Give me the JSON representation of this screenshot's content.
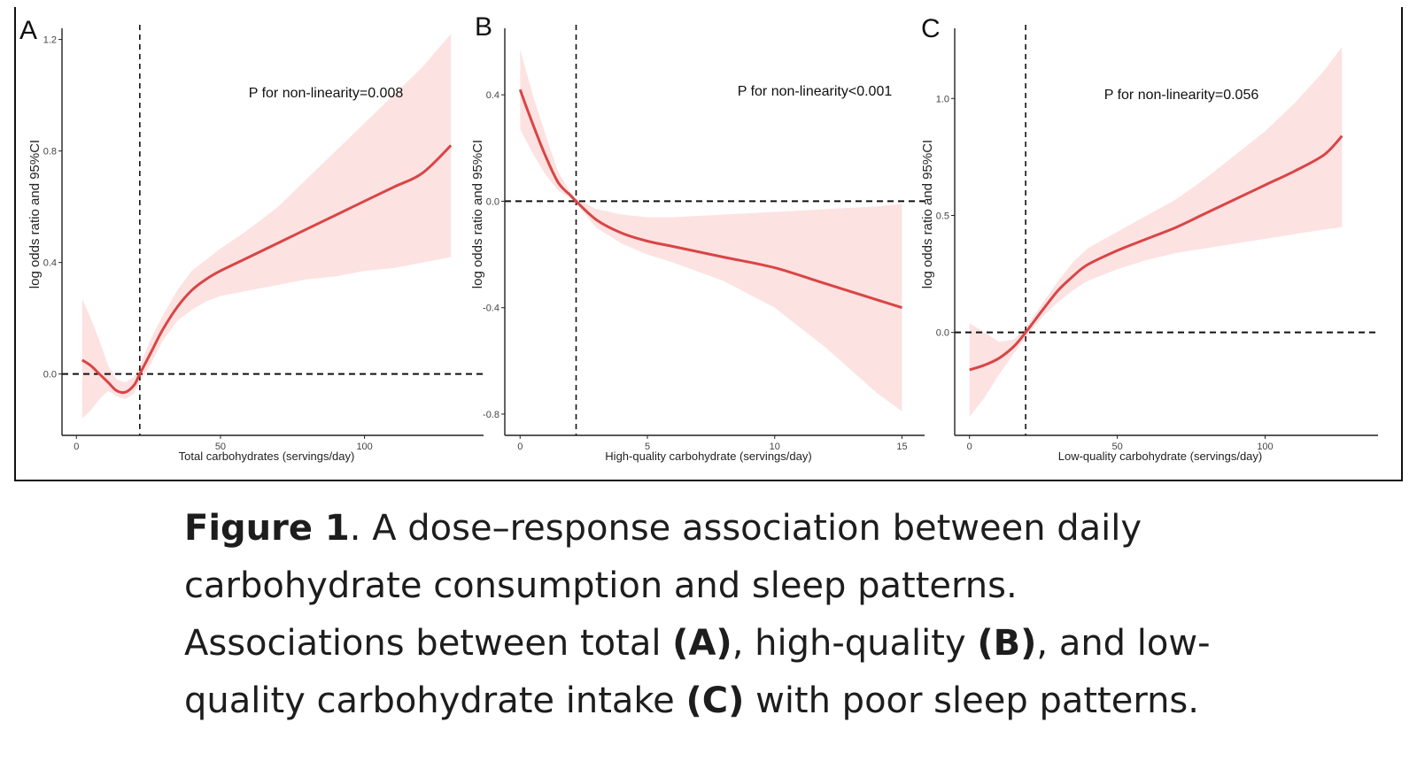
{
  "chart_data": [
    {
      "type": "line",
      "panel": "A",
      "xlabel": "Total carbohydrates (servings/day)",
      "ylabel": "log odds ratio and 95%CI",
      "annotation": "P for non-linearity=0.008",
      "xlim": [
        -5,
        137
      ],
      "ylim": [
        -0.22,
        1.24
      ],
      "xticks": [
        0,
        50,
        100
      ],
      "xtick_labels": [
        "0",
        "50",
        "100"
      ],
      "yticks": [
        0.0,
        0.4,
        0.8,
        1.2
      ],
      "ytick_labels": [
        "0.0",
        "0.4",
        "0.8",
        "1.2"
      ],
      "ref_x": 22,
      "ref_y": 0,
      "series": [
        {
          "name": "log odds ratio",
          "color": "#d94545",
          "x": [
            2,
            5,
            8,
            11,
            14,
            17,
            20,
            22,
            26,
            30,
            35,
            40,
            45,
            50,
            60,
            70,
            80,
            90,
            100,
            110,
            120,
            130
          ],
          "y": [
            0.05,
            0.03,
            0.0,
            -0.03,
            -0.06,
            -0.065,
            -0.04,
            0.0,
            0.08,
            0.16,
            0.24,
            0.3,
            0.34,
            0.37,
            0.42,
            0.47,
            0.52,
            0.57,
            0.62,
            0.67,
            0.72,
            0.82
          ],
          "ci_lower": [
            -0.16,
            -0.13,
            -0.09,
            -0.06,
            -0.08,
            -0.09,
            -0.07,
            -0.03,
            0.04,
            0.12,
            0.19,
            0.23,
            0.26,
            0.28,
            0.3,
            0.32,
            0.34,
            0.35,
            0.37,
            0.38,
            0.4,
            0.42
          ],
          "ci_upper": [
            0.27,
            0.2,
            0.12,
            0.03,
            -0.02,
            -0.03,
            -0.01,
            0.03,
            0.13,
            0.21,
            0.3,
            0.37,
            0.41,
            0.45,
            0.52,
            0.6,
            0.7,
            0.8,
            0.9,
            1.0,
            1.1,
            1.22
          ]
        }
      ]
    },
    {
      "type": "line",
      "panel": "B",
      "xlabel": "High-quality carbohydrate (servings/day)",
      "ylabel": "log odds ratio and 95%CI",
      "annotation": "P for non-linearity<0.001",
      "xlim": [
        -0.6,
        15.4
      ],
      "ylim": [
        -0.88,
        0.65
      ],
      "xticks": [
        0,
        5,
        10,
        15
      ],
      "xtick_labels": [
        "0",
        "5",
        "10",
        "15"
      ],
      "yticks": [
        -0.8,
        -0.4,
        0.0,
        0.4
      ],
      "ytick_labels": [
        "-0.8",
        "-0.4",
        "0.0",
        "0.4"
      ],
      "ref_x": 2.2,
      "ref_y": 0,
      "series": [
        {
          "name": "log odds ratio",
          "color": "#d94545",
          "x": [
            0,
            0.5,
            1.0,
            1.5,
            2.0,
            2.2,
            3,
            4,
            5,
            6,
            8,
            10,
            12,
            14,
            15
          ],
          "y": [
            0.42,
            0.29,
            0.17,
            0.07,
            0.02,
            0.0,
            -0.07,
            -0.12,
            -0.15,
            -0.17,
            -0.21,
            -0.25,
            -0.31,
            -0.37,
            -0.4
          ],
          "ci_lower": [
            0.27,
            0.18,
            0.1,
            0.04,
            0.01,
            -0.01,
            -0.1,
            -0.16,
            -0.2,
            -0.23,
            -0.3,
            -0.4,
            -0.55,
            -0.72,
            -0.79
          ],
          "ci_upper": [
            0.57,
            0.4,
            0.25,
            0.11,
            0.03,
            0.01,
            -0.03,
            -0.05,
            -0.06,
            -0.06,
            -0.05,
            -0.04,
            -0.03,
            -0.02,
            -0.01
          ]
        }
      ]
    },
    {
      "type": "line",
      "panel": "C",
      "xlabel": "Low-quality carbohydrate (servings/day)",
      "ylabel": "log odds ratio and 95%CI",
      "annotation": "P for non-linearity=0.056",
      "xlim": [
        -5,
        134
      ],
      "ylim": [
        -0.44,
        1.3
      ],
      "xticks": [
        0,
        50,
        100
      ],
      "xtick_labels": [
        "0",
        "50",
        "100"
      ],
      "yticks": [
        0.0,
        0.5,
        1.0
      ],
      "ytick_labels": [
        "0.0",
        "0.5",
        "1.0"
      ],
      "ref_x": 19,
      "ref_y": 0,
      "series": [
        {
          "name": "log odds ratio",
          "color": "#d94545",
          "x": [
            0,
            5,
            10,
            15,
            19,
            25,
            30,
            35,
            40,
            50,
            60,
            70,
            80,
            90,
            100,
            110,
            120,
            126
          ],
          "y": [
            -0.16,
            -0.14,
            -0.11,
            -0.06,
            0.0,
            0.1,
            0.18,
            0.24,
            0.29,
            0.35,
            0.4,
            0.45,
            0.51,
            0.57,
            0.63,
            0.69,
            0.76,
            0.84
          ],
          "ci_lower": [
            -0.36,
            -0.28,
            -0.18,
            -0.09,
            -0.02,
            0.07,
            0.13,
            0.18,
            0.22,
            0.27,
            0.31,
            0.34,
            0.36,
            0.38,
            0.4,
            0.42,
            0.44,
            0.45
          ],
          "ci_upper": [
            0.04,
            0.0,
            -0.04,
            -0.03,
            0.02,
            0.13,
            0.22,
            0.3,
            0.36,
            0.43,
            0.5,
            0.57,
            0.66,
            0.76,
            0.86,
            0.98,
            1.12,
            1.22
          ]
        }
      ]
    }
  ],
  "caption": {
    "label": "Figure 1",
    "text_1": ". A dose–response association between daily carbohydrate consumption and sleep patterns. Associations between total ",
    "ref_a": "(A)",
    "text_2": ", high-quality ",
    "ref_b": "(B)",
    "text_3": ", and low-quality carbohydrate intake ",
    "ref_c": "(C)",
    "text_4": " with poor sleep patterns."
  },
  "colors": {
    "line": "#d94545",
    "band": "#fde2e2",
    "axis": "#222222"
  }
}
